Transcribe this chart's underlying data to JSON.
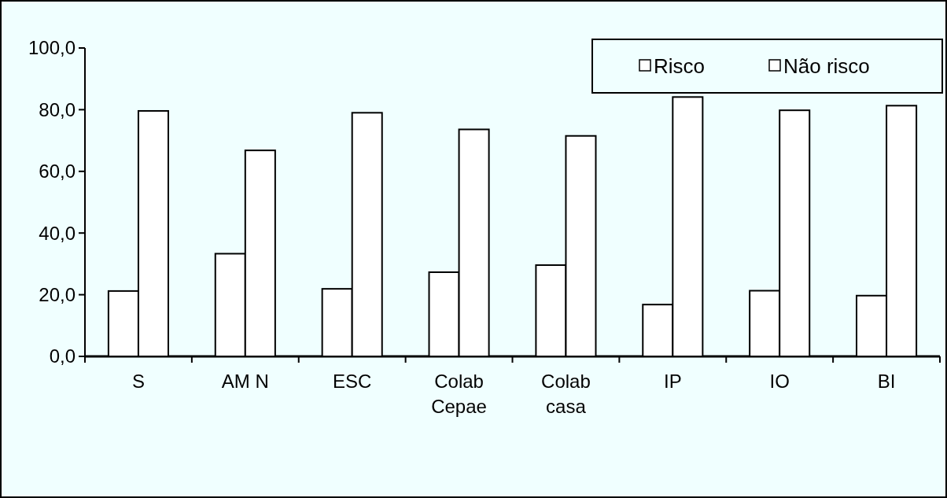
{
  "chart_data": {
    "type": "bar",
    "categories": [
      "S",
      "AM N",
      "ESC",
      "Colab\nCepae",
      "Colab\ncasa",
      "IP",
      "IO",
      "BI"
    ],
    "series": [
      {
        "name": "Risco",
        "color": "#ffffff",
        "values": [
          21.2,
          33.3,
          21.9,
          27.3,
          29.6,
          16.8,
          21.3,
          19.7
        ]
      },
      {
        "name": "Não risco",
        "color": "#ffffff",
        "values": [
          79.6,
          66.8,
          79.0,
          73.6,
          71.5,
          84.1,
          79.8,
          81.3
        ]
      }
    ],
    "ylim": [
      0,
      100
    ],
    "yticks": [
      {
        "value": 0,
        "label": "0,0"
      },
      {
        "value": 20,
        "label": "20,0"
      },
      {
        "value": 40,
        "label": "40,0"
      },
      {
        "value": 60,
        "label": "60,0"
      },
      {
        "value": 80,
        "label": "80,0"
      },
      {
        "value": 100,
        "label": "100,0"
      }
    ],
    "grid": false,
    "legend": "top right"
  }
}
